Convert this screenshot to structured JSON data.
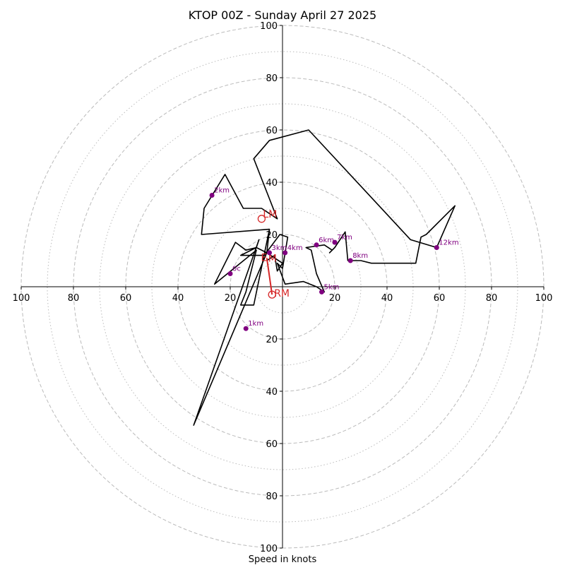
{
  "chart_data": {
    "type": "line",
    "title": "KTOP 00Z - Sunday April 27 2025",
    "xlabel": "Speed in knots",
    "xlim": [
      -100,
      100
    ],
    "ylim": [
      -100,
      100
    ],
    "x_ticks": [
      {
        "value": -100,
        "label": "100"
      },
      {
        "value": -80,
        "label": "80"
      },
      {
        "value": -60,
        "label": "60"
      },
      {
        "value": -40,
        "label": "40"
      },
      {
        "value": -20,
        "label": "20"
      },
      {
        "value": 20,
        "label": "20"
      },
      {
        "value": 40,
        "label": "40"
      },
      {
        "value": 60,
        "label": "60"
      },
      {
        "value": 80,
        "label": "80"
      },
      {
        "value": 100,
        "label": "100"
      }
    ],
    "y_ticks": [
      {
        "value": 100,
        "label": "100"
      },
      {
        "value": 80,
        "label": "80"
      },
      {
        "value": 60,
        "label": "60"
      },
      {
        "value": 40,
        "label": "40"
      },
      {
        "value": 20,
        "label": "20"
      },
      {
        "value": -20,
        "label": "20"
      },
      {
        "value": -40,
        "label": "40"
      },
      {
        "value": -60,
        "label": "60"
      },
      {
        "value": -80,
        "label": "80"
      },
      {
        "value": -100,
        "label": "100"
      }
    ],
    "rings": {
      "dashed": [
        20,
        40,
        60,
        80,
        100
      ],
      "dotted": [
        10,
        30,
        50,
        70,
        90
      ],
      "color": "#bbbbbb"
    },
    "hodograph": {
      "color": "#000000",
      "points": [
        [
          -6,
          10
        ],
        [
          -3,
          12
        ],
        [
          -2,
          6
        ],
        [
          0,
          9
        ],
        [
          -3,
          11
        ],
        [
          -6,
          13
        ],
        [
          -10,
          15
        ],
        [
          -14,
          14
        ],
        [
          -18,
          17
        ],
        [
          -26,
          1
        ],
        [
          -10,
          14
        ],
        [
          -14,
          -2
        ],
        [
          -16,
          -7
        ],
        [
          -11,
          -7
        ],
        [
          -5,
          22
        ],
        [
          -6,
          13
        ],
        [
          -34,
          -53
        ],
        [
          -9,
          18
        ],
        [
          -10,
          15
        ],
        [
          -16,
          12
        ],
        [
          -7,
          12
        ],
        [
          -1,
          20
        ],
        [
          2,
          19
        ],
        [
          0,
          7
        ],
        [
          -2,
          9
        ],
        [
          1,
          1
        ],
        [
          8,
          2
        ],
        [
          13,
          0
        ],
        [
          16,
          -2
        ],
        [
          13,
          5
        ],
        [
          11,
          14
        ],
        [
          9,
          15
        ],
        [
          16,
          16
        ],
        [
          19,
          14
        ],
        [
          18,
          13
        ],
        [
          20,
          15
        ],
        [
          24,
          21
        ],
        [
          25,
          10
        ],
        [
          30,
          10
        ],
        [
          34,
          9
        ],
        [
          51,
          9
        ],
        [
          53,
          19
        ],
        [
          55,
          20
        ],
        [
          66,
          31
        ],
        [
          59,
          15
        ],
        [
          49,
          18
        ],
        [
          10,
          60
        ],
        [
          -5,
          56
        ],
        [
          -11,
          49
        ],
        [
          -2,
          26
        ],
        [
          -8,
          30
        ],
        [
          -15,
          30
        ],
        [
          -22,
          43
        ],
        [
          -30,
          30
        ],
        [
          -31,
          20
        ],
        [
          -5,
          22
        ]
      ]
    },
    "height_markers": {
      "color": "#800080",
      "points": [
        {
          "label": "1km",
          "x": -14,
          "y": -16
        },
        {
          "label": "2km",
          "x": -27,
          "y": 35
        },
        {
          "label": "3km",
          "x": -5,
          "y": 13
        },
        {
          "label": "4km",
          "x": 1,
          "y": 13
        },
        {
          "label": "5km",
          "x": 15,
          "y": -2
        },
        {
          "label": "6km",
          "x": 13,
          "y": 16
        },
        {
          "label": "7km",
          "x": 20,
          "y": 17
        },
        {
          "label": "8km",
          "x": 26,
          "y": 10
        },
        {
          "label": "12km",
          "x": 59,
          "y": 15
        },
        {
          "label": "0c",
          "x": -20,
          "y": 5
        }
      ]
    },
    "storm_motion": {
      "color": "#d62728",
      "rm": {
        "label": "RM",
        "x": -4,
        "y": -3
      },
      "lm": {
        "label": "LM",
        "x": -8,
        "y": 26
      },
      "mean": {
        "label": "M",
        "x": -6,
        "y": 11
      },
      "extra": {
        "label": "E",
        "x": -5,
        "y": 11
      }
    }
  }
}
